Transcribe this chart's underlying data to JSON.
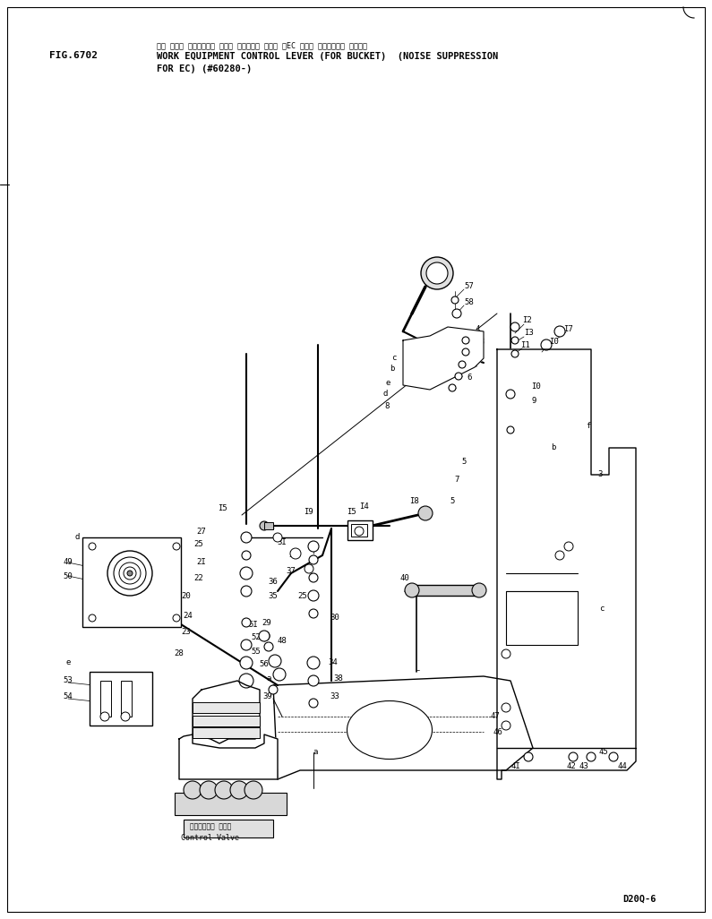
{
  "fig_number": "FIG.6702",
  "title_japanese": "サギ ヨウキ コントロール レバー （バケット ヨウ） （EC ヨウケ テイヨウオン ショウ）",
  "title_line1": "WORK EQUIPMENT CONTROL LEVER (FOR BUCKET)  (NOISE SUPPRESSION",
  "title_line2": "FOR EC) (#60280-)",
  "model": "D20Q-6",
  "bg": "#ffffff",
  "black": "#000000"
}
